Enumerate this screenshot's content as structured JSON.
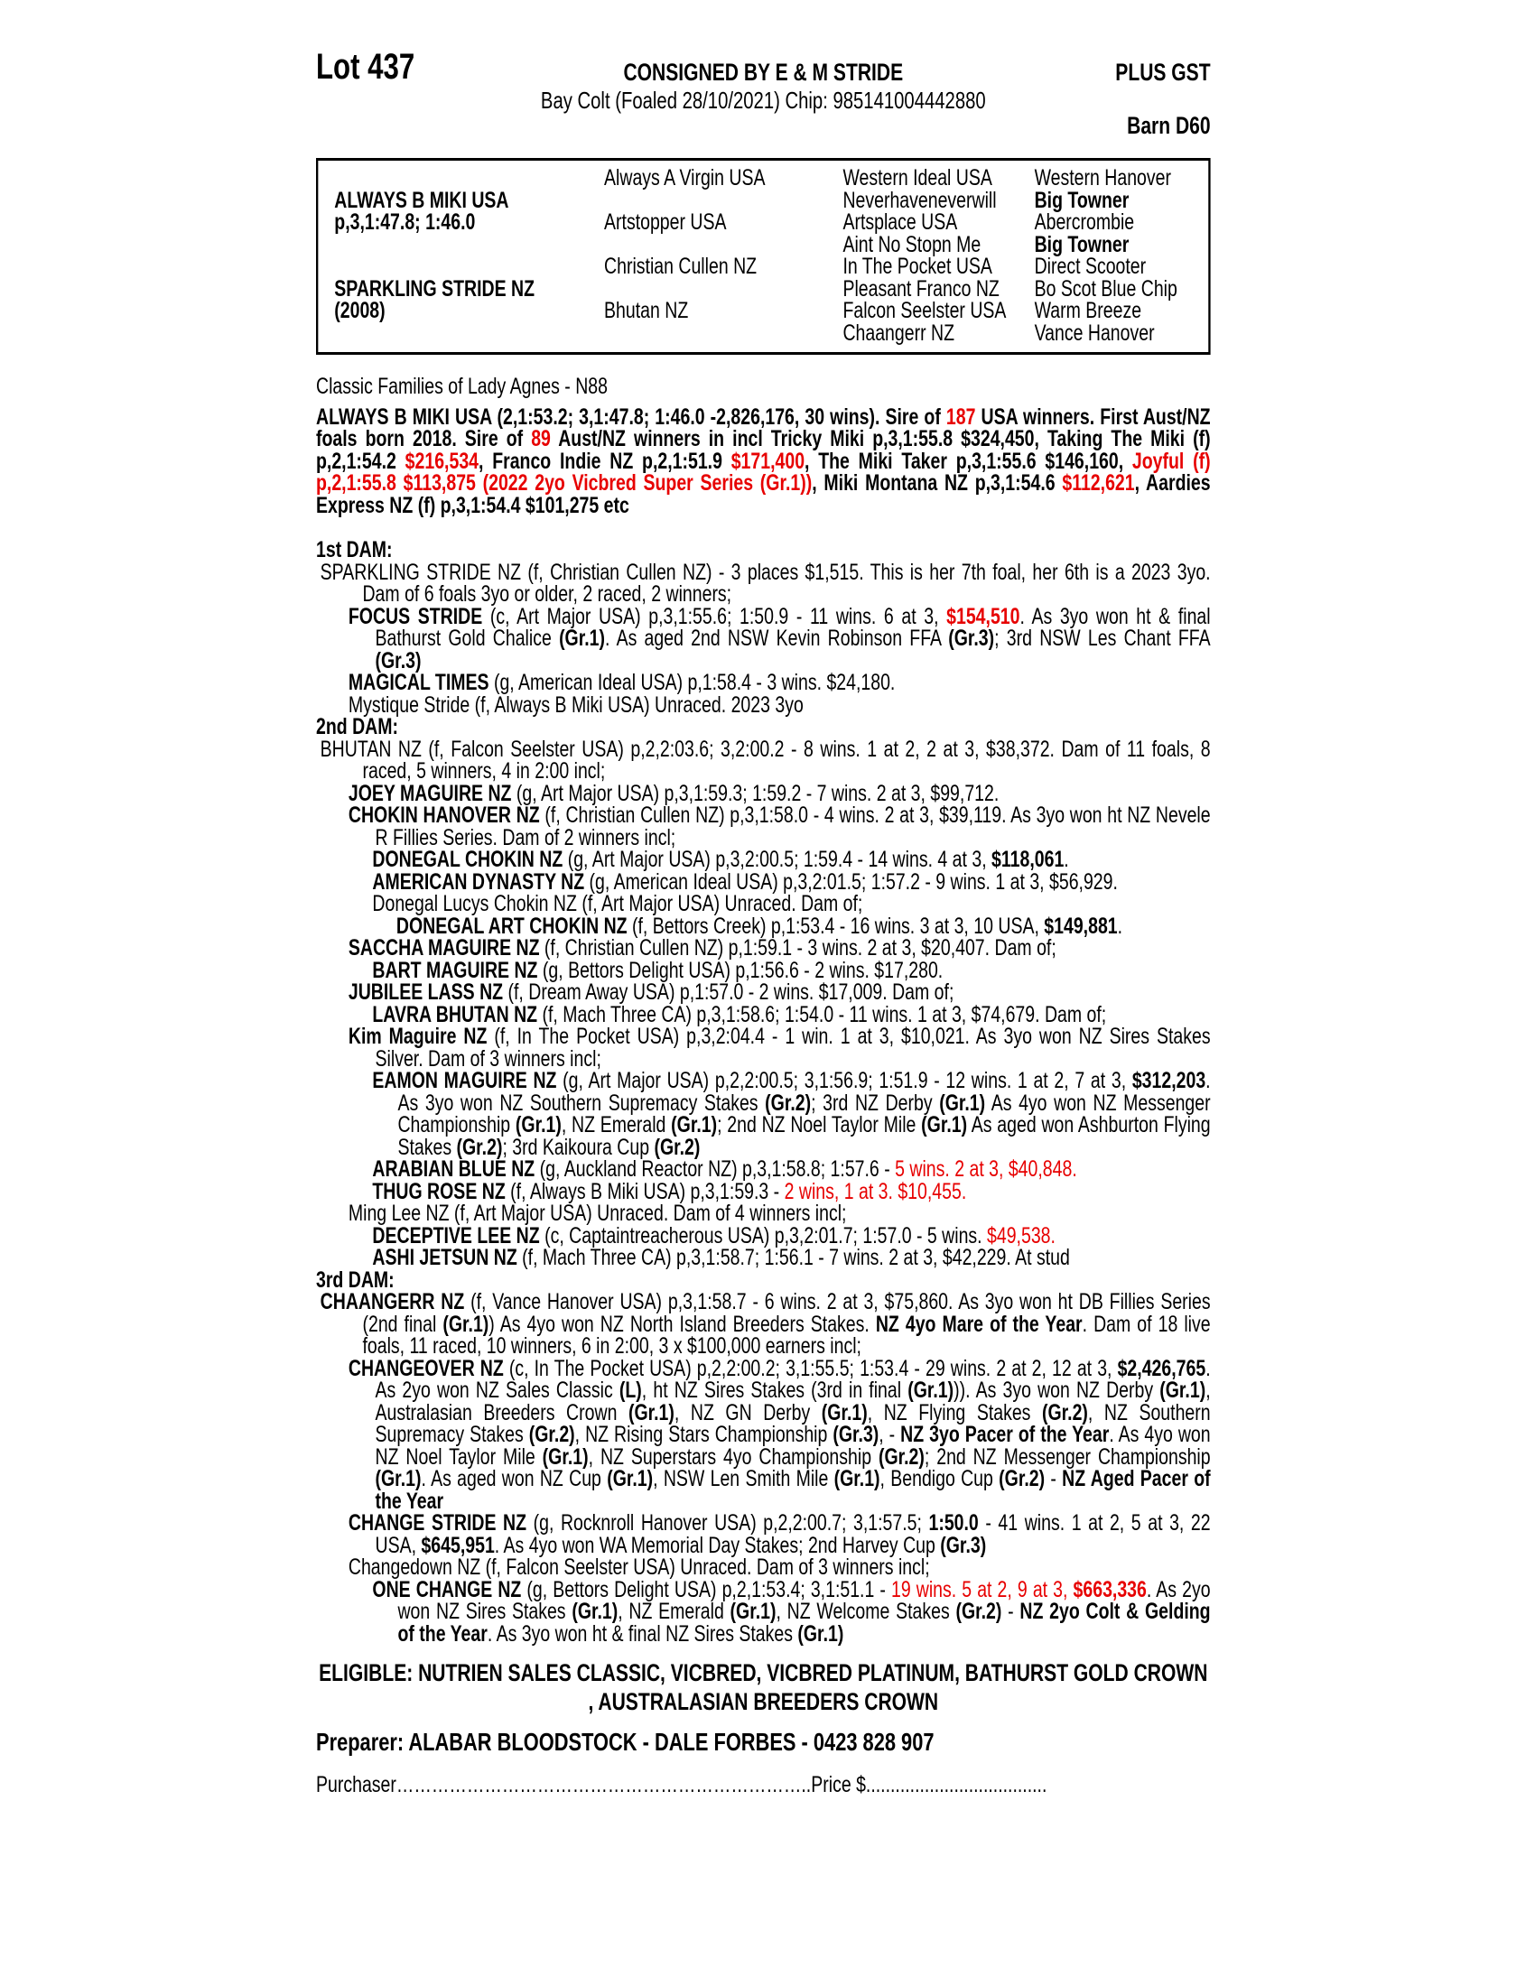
{
  "header": {
    "lot": "Lot 437",
    "consigned": "CONSIGNED BY E & M STRIDE",
    "plus_gst": "PLUS GST",
    "subtitle": "Bay Colt (Foaled 28/10/2021) Chip: 985141004442880",
    "barn": "Barn D60"
  },
  "colors": {
    "accent_red": "#e70000"
  },
  "pedigree_table": {
    "cells": [
      {
        "r": 1,
        "c": 0,
        "t": "ALWAYS B MIKI USA",
        "b": true
      },
      {
        "r": 2,
        "c": 0,
        "t": "p,3,1:47.8; 1:46.0",
        "b": true
      },
      {
        "r": 5,
        "c": 0,
        "t": "SPARKLING STRIDE NZ",
        "b": true
      },
      {
        "r": 6,
        "c": 0,
        "t": "(2008)",
        "b": true
      },
      {
        "r": 0,
        "c": 1,
        "t": "Always A Virgin USA"
      },
      {
        "r": 2,
        "c": 1,
        "t": "Artstopper USA"
      },
      {
        "r": 4,
        "c": 1,
        "t": "Christian Cullen NZ"
      },
      {
        "r": 6,
        "c": 1,
        "t": "Bhutan NZ"
      },
      {
        "r": 0,
        "c": 2,
        "t": "Western Ideal USA"
      },
      {
        "r": 1,
        "c": 2,
        "t": "Neverhaveneverwill"
      },
      {
        "r": 2,
        "c": 2,
        "t": "Artsplace USA"
      },
      {
        "r": 3,
        "c": 2,
        "t": "Aint No Stopn Me"
      },
      {
        "r": 4,
        "c": 2,
        "t": "In The Pocket USA"
      },
      {
        "r": 5,
        "c": 2,
        "t": "Pleasant Franco NZ"
      },
      {
        "r": 6,
        "c": 2,
        "t": "Falcon Seelster USA"
      },
      {
        "r": 7,
        "c": 2,
        "t": "Chaangerr NZ"
      },
      {
        "r": 0,
        "c": 3,
        "t": "Western Hanover"
      },
      {
        "r": 1,
        "c": 3,
        "t": "Big Towner",
        "b": true
      },
      {
        "r": 2,
        "c": 3,
        "t": "Abercrombie"
      },
      {
        "r": 3,
        "c": 3,
        "t": "Big Towner",
        "b": true
      },
      {
        "r": 4,
        "c": 3,
        "t": "Direct Scooter"
      },
      {
        "r": 5,
        "c": 3,
        "t": "Bo Scot Blue Chip"
      },
      {
        "r": 6,
        "c": 3,
        "t": "Warm Breeze"
      },
      {
        "r": 7,
        "c": 3,
        "t": "Vance Hanover"
      }
    ]
  },
  "family_line": "Classic Families of Lady Agnes - N88",
  "sire_note": {
    "segments": [
      {
        "t": "ALWAYS B MIKI USA (2,1:53.2; 3,1:47.8; 1:46.0 -2,826,176, 30 wins). Sire of ",
        "b": true
      },
      {
        "t": "187",
        "b": true,
        "r": true
      },
      {
        "t": " USA winners. First Aust/NZ foals born 2018. Sire of ",
        "b": true
      },
      {
        "t": "89",
        "b": true,
        "r": true
      },
      {
        "t": " Aust/NZ winners in incl Tricky Miki p,3,1:55.8 $324,450, Taking The Miki (f) p,2,1:54.2 ",
        "b": true
      },
      {
        "t": "$216,534",
        "b": true,
        "r": true
      },
      {
        "t": ", Franco Indie NZ p,2,1:51.9 ",
        "b": true
      },
      {
        "t": "$171,400",
        "b": true,
        "r": true
      },
      {
        "t": ", The Miki Taker p,3,1:55.6 $146,160, ",
        "b": true
      },
      {
        "t": "Joyful (f) p,2,1:55.8 $113,875 (2022 2yo Vicbred Super Series (Gr.1))",
        "b": true,
        "r": true
      },
      {
        "t": ", Miki Montana NZ p,3,1:54.6 ",
        "b": true
      },
      {
        "t": "$112,621",
        "b": true,
        "r": true
      },
      {
        "t": ", Aardies Express NZ (f) p,3,1:54.4 $101,275 etc",
        "b": true
      }
    ]
  },
  "body": {
    "blocks": [
      {
        "kind": "heading",
        "text": "1st DAM:"
      },
      {
        "kind": "entry",
        "level": 1,
        "segments": [
          {
            "t": "SPARKLING STRIDE NZ (f, Christian Cullen NZ) - 3 places $1,515. This is her 7th foal, her 6th is a 2023 3yo. Dam of 6 foals 3yo or older, 2 raced, 2 winners;"
          }
        ]
      },
      {
        "kind": "entry",
        "level": 2,
        "segments": [
          {
            "t": "FOCUS STRIDE",
            "b": true
          },
          {
            "t": " (c, Art Major USA) p,3,1:55.6; 1:50.9 - 11 wins. 6 at 3, "
          },
          {
            "t": "$154,510",
            "b": true,
            "r": true
          },
          {
            "t": ". As 3yo won ht & final Bathurst Gold Chalice "
          },
          {
            "t": "(Gr.1)",
            "b": true
          },
          {
            "t": ". As aged 2nd NSW Kevin Robinson FFA "
          },
          {
            "t": "(Gr.3)",
            "b": true
          },
          {
            "t": "; 3rd NSW Les Chant FFA "
          },
          {
            "t": "(Gr.3)",
            "b": true
          }
        ]
      },
      {
        "kind": "entry",
        "level": 2,
        "segments": [
          {
            "t": "MAGICAL TIMES",
            "b": true
          },
          {
            "t": " (g, American Ideal USA) p,1:58.4 - 3 wins. $24,180."
          }
        ]
      },
      {
        "kind": "entry",
        "level": 2,
        "segments": [
          {
            "t": "Mystique Stride (f, Always B Miki USA) Unraced. 2023 3yo"
          }
        ]
      },
      {
        "kind": "heading",
        "text": "2nd DAM:"
      },
      {
        "kind": "entry",
        "level": 1,
        "segments": [
          {
            "t": "BHUTAN NZ (f, Falcon Seelster USA) p,2,2:03.6; 3,2:00.2 - 8 wins. 1 at 2, 2 at 3, $38,372. Dam of 11 foals, 8 raced, 5 winners, 4 in 2:00 incl;"
          }
        ]
      },
      {
        "kind": "entry",
        "level": 2,
        "segments": [
          {
            "t": "JOEY MAGUIRE NZ",
            "b": true
          },
          {
            "t": " (g, Art Major USA) p,3,1:59.3; 1:59.2 - 7 wins. 2 at 3, $99,712."
          }
        ]
      },
      {
        "kind": "entry",
        "level": 2,
        "segments": [
          {
            "t": "CHOKIN HANOVER NZ",
            "b": true
          },
          {
            "t": " (f, Christian Cullen NZ) p,3,1:58.0 - 4 wins. 2 at 3, $39,119. As 3yo won ht NZ Nevele R Fillies Series. Dam of 2 winners incl;"
          }
        ]
      },
      {
        "kind": "entry",
        "level": 3,
        "segments": [
          {
            "t": "DONEGAL CHOKIN NZ",
            "b": true
          },
          {
            "t": " (g, Art Major USA) p,3,2:00.5; 1:59.4 - 14 wins. 4 at 3, "
          },
          {
            "t": "$118,061",
            "b": true
          },
          {
            "t": "."
          }
        ]
      },
      {
        "kind": "entry",
        "level": 3,
        "segments": [
          {
            "t": "AMERICAN DYNASTY NZ",
            "b": true
          },
          {
            "t": " (g, American Ideal USA) p,3,2:01.5; 1:57.2 - 9 wins. 1 at 3, $56,929."
          }
        ]
      },
      {
        "kind": "entry",
        "level": 3,
        "segments": [
          {
            "t": "Donegal Lucys Chokin NZ (f, Art Major USA) Unraced. Dam of;"
          }
        ]
      },
      {
        "kind": "entry",
        "level": 4,
        "segments": [
          {
            "t": "DONEGAL ART CHOKIN NZ",
            "b": true
          },
          {
            "t": " (f, Bettors Creek) p,1:53.4 - 16 wins. 3 at 3, 10 USA, "
          },
          {
            "t": "$149,881",
            "b": true
          },
          {
            "t": "."
          }
        ]
      },
      {
        "kind": "entry",
        "level": 2,
        "segments": [
          {
            "t": "SACCHA MAGUIRE NZ",
            "b": true
          },
          {
            "t": " (f, Christian Cullen NZ) p,1:59.1 - 3 wins. 2 at 3, $20,407. Dam of;"
          }
        ]
      },
      {
        "kind": "entry",
        "level": 3,
        "segments": [
          {
            "t": "BART MAGUIRE NZ",
            "b": true
          },
          {
            "t": " (g, Bettors Delight USA) p,1:56.6 - 2 wins. $17,280."
          }
        ]
      },
      {
        "kind": "entry",
        "level": 2,
        "segments": [
          {
            "t": "JUBILEE LASS NZ",
            "b": true
          },
          {
            "t": " (f, Dream Away USA) p,1:57.0 - 2 wins. $17,009. Dam of;"
          }
        ]
      },
      {
        "kind": "entry",
        "level": 3,
        "segments": [
          {
            "t": "LAVRA BHUTAN NZ",
            "b": true
          },
          {
            "t": " (f, Mach Three CA) p,3,1:58.6; 1:54.0 - 11 wins. 1 at 3, $74,679. Dam of;"
          }
        ]
      },
      {
        "kind": "entry",
        "level": 2,
        "segments": [
          {
            "t": "Kim Maguire NZ",
            "b": true
          },
          {
            "t": " (f, In The Pocket USA) p,3,2:04.4 - 1 win. 1 at 3, $10,021. As 3yo won NZ Sires Stakes Silver. Dam of 3 winners incl;"
          }
        ]
      },
      {
        "kind": "entry",
        "level": 3,
        "segments": [
          {
            "t": "EAMON MAGUIRE NZ",
            "b": true
          },
          {
            "t": " (g, Art Major USA) p,2,2:00.5; 3,1:56.9; 1:51.9 - 12 wins. 1 at 2, 7 at 3, "
          },
          {
            "t": "$312,203",
            "b": true
          },
          {
            "t": ". As 3yo won NZ Southern Supremacy Stakes "
          },
          {
            "t": "(Gr.2)",
            "b": true
          },
          {
            "t": "; 3rd NZ Derby "
          },
          {
            "t": "(Gr.1)",
            "b": true
          },
          {
            "t": " As 4yo won NZ Messenger Championship "
          },
          {
            "t": "(Gr.1)",
            "b": true
          },
          {
            "t": ", NZ Emerald "
          },
          {
            "t": "(Gr.1)",
            "b": true
          },
          {
            "t": "; 2nd NZ Noel Taylor Mile "
          },
          {
            "t": "(Gr.1)",
            "b": true
          },
          {
            "t": " As aged won Ashburton Flying Stakes "
          },
          {
            "t": "(Gr.2)",
            "b": true
          },
          {
            "t": "; 3rd Kaikoura Cup "
          },
          {
            "t": "(Gr.2)",
            "b": true
          }
        ]
      },
      {
        "kind": "entry",
        "level": 3,
        "segments": [
          {
            "t": "ARABIAN BLUE NZ",
            "b": true
          },
          {
            "t": " (g, Auckland Reactor NZ) p,3,1:58.8; 1:57.6 - "
          },
          {
            "t": "5 wins. 2 at 3, $40,848.",
            "r": true
          }
        ]
      },
      {
        "kind": "entry",
        "level": 3,
        "segments": [
          {
            "t": "THUG ROSE NZ",
            "b": true
          },
          {
            "t": " (f, Always B Miki USA) p,3,1:59.3 - "
          },
          {
            "t": "2 wins, 1 at 3. $10,455.",
            "r": true
          }
        ]
      },
      {
        "kind": "entry",
        "level": 2,
        "segments": [
          {
            "t": "Ming Lee NZ (f, Art Major USA) Unraced. Dam of 4 winners incl;"
          }
        ]
      },
      {
        "kind": "entry",
        "level": 3,
        "segments": [
          {
            "t": "DECEPTIVE LEE NZ",
            "b": true
          },
          {
            "t": " (c, Captaintreacherous USA) p,3,2:01.7; 1:57.0 - 5 wins. "
          },
          {
            "t": "$49,538.",
            "r": true
          }
        ]
      },
      {
        "kind": "entry",
        "level": 3,
        "segments": [
          {
            "t": "ASHI JETSUN NZ",
            "b": true
          },
          {
            "t": " (f, Mach Three CA) p,3,1:58.7; 1:56.1 - 7 wins. 2 at 3, $42,229. At stud"
          }
        ]
      },
      {
        "kind": "heading",
        "text": "3rd DAM:"
      },
      {
        "kind": "entry",
        "level": 1,
        "segments": [
          {
            "t": "CHAANGERR NZ",
            "b": true
          },
          {
            "t": " (f, Vance Hanover USA) p,3,1:58.7 - 6 wins. 2 at 3, $75,860. As 3yo won ht DB Fillies Series (2nd final "
          },
          {
            "t": "(Gr.1)",
            "b": true
          },
          {
            "t": ") As 4yo won NZ North Island Breeders Stakes. "
          },
          {
            "t": "NZ 4yo Mare of the Year",
            "b": true
          },
          {
            "t": ". Dam of 18 live foals, 11 raced, 10 winners, 6 in 2:00, 3 x $100,000 earners incl;"
          }
        ]
      },
      {
        "kind": "entry",
        "level": 2,
        "segments": [
          {
            "t": "CHANGEOVER NZ",
            "b": true
          },
          {
            "t": " (c, In The Pocket USA) p,2,2:00.2; 3,1:55.5; 1:53.4 - 29 wins. 2 at 2, 12 at 3, "
          },
          {
            "t": "$2,426,765",
            "b": true
          },
          {
            "t": ". As 2yo won NZ Sales Classic "
          },
          {
            "t": "(L)",
            "b": true
          },
          {
            "t": ", ht NZ Sires Stakes (3rd in final "
          },
          {
            "t": "(Gr.1)",
            "b": true
          },
          {
            "t": ")). As 3yo won NZ Derby "
          },
          {
            "t": "(Gr.1)",
            "b": true
          },
          {
            "t": ", Australasian Breeders Crown "
          },
          {
            "t": "(Gr.1)",
            "b": true
          },
          {
            "t": ", NZ GN Derby "
          },
          {
            "t": "(Gr.1)",
            "b": true
          },
          {
            "t": ", NZ Flying Stakes "
          },
          {
            "t": "(Gr.2)",
            "b": true
          },
          {
            "t": ", NZ Southern Supremacy Stakes "
          },
          {
            "t": "(Gr.2)",
            "b": true
          },
          {
            "t": ", NZ Rising Stars Championship "
          },
          {
            "t": "(Gr.3)",
            "b": true
          },
          {
            "t": ", - "
          },
          {
            "t": "NZ 3yo Pacer of the Year",
            "b": true
          },
          {
            "t": ". As 4yo won NZ Noel Taylor Mile "
          },
          {
            "t": "(Gr.1)",
            "b": true
          },
          {
            "t": ", NZ Superstars 4yo Championship "
          },
          {
            "t": "(Gr.2)",
            "b": true
          },
          {
            "t": "; 2nd NZ Messenger Championship "
          },
          {
            "t": "(Gr.1)",
            "b": true
          },
          {
            "t": ". As aged won NZ Cup "
          },
          {
            "t": "(Gr.1)",
            "b": true
          },
          {
            "t": ", NSW Len Smith Mile "
          },
          {
            "t": "(Gr.1)",
            "b": true
          },
          {
            "t": ", Bendigo Cup "
          },
          {
            "t": "(Gr.2)",
            "b": true
          },
          {
            "t": " - "
          },
          {
            "t": "NZ Aged Pacer of the Year",
            "b": true
          }
        ]
      },
      {
        "kind": "entry",
        "level": 2,
        "segments": [
          {
            "t": "CHANGE STRIDE NZ",
            "b": true
          },
          {
            "t": " (g, Rocknroll Hanover USA) p,2,2:00.7; 3,1:57.5; "
          },
          {
            "t": "1:50.0",
            "b": true
          },
          {
            "t": " - 41 wins. 1 at 2, 5 at 3, 22 USA, "
          },
          {
            "t": "$645,951",
            "b": true
          },
          {
            "t": ". As 4yo won WA Memorial Day Stakes; 2nd Harvey Cup "
          },
          {
            "t": "(Gr.3)",
            "b": true
          }
        ]
      },
      {
        "kind": "entry",
        "level": 2,
        "segments": [
          {
            "t": "Changedown NZ (f, Falcon Seelster USA) Unraced. Dam of 3 winners incl;"
          }
        ]
      },
      {
        "kind": "entry",
        "level": 3,
        "segments": [
          {
            "t": "ONE CHANGE NZ",
            "b": true
          },
          {
            "t": " (g, Bettors Delight USA) p,2,1:53.4; 3,1:51.1 - "
          },
          {
            "t": "19 wins. 5 at 2, 9 at 3, ",
            "r": true
          },
          {
            "t": "$663,336",
            "b": true,
            "r": true
          },
          {
            "t": ". As 2yo won NZ Sires Stakes "
          },
          {
            "t": "(Gr.1)",
            "b": true
          },
          {
            "t": ", NZ Emerald "
          },
          {
            "t": "(Gr.1)",
            "b": true
          },
          {
            "t": ", NZ Welcome Stakes "
          },
          {
            "t": "(Gr.2)",
            "b": true
          },
          {
            "t": " - "
          },
          {
            "t": "NZ 2yo Colt & Gelding of the Year",
            "b": true
          },
          {
            "t": ". As 3yo won ht & final NZ Sires Stakes "
          },
          {
            "t": "(Gr.1)",
            "b": true
          }
        ]
      }
    ]
  },
  "eligible_line": "ELIGIBLE: NUTRIEN SALES CLASSIC, VICBRED, VICBRED PLATINUM, BATHURST GOLD CROWN , AUSTRALASIAN BREEDERS CROWN",
  "preparer_line": "Preparer: ALABAR BLOODSTOCK - DALE FORBES - 0423 828 907",
  "purchase": {
    "purchaser_label": "Purchaser",
    "dots_1": "……………………………………………………………..",
    "price_label": "Price $",
    "dots_2": "....................................."
  }
}
